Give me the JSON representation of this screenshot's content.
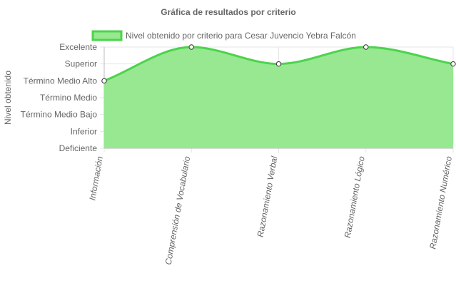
{
  "chart_data": {
    "type": "area",
    "title": "Gráfica de resultados por criterio",
    "xlabel": "",
    "ylabel": "Nivel obtenido",
    "categories": [
      "Información",
      "Comprensión de Vocabulario",
      "Razonamiento Verbal",
      "Razonamiento Lógico",
      "Razonamiento Numérico"
    ],
    "y_levels": [
      "Deficiente",
      "Inferior",
      "Término Medio Bajo",
      "Término Medio",
      "Término Medio Alto",
      "Superior",
      "Excelente"
    ],
    "series": [
      {
        "name": "Nivel obtenido por criterio para Cesar Juvencio Yebra Falcón",
        "values": [
          "Término Medio Alto",
          "Excelente",
          "Superior",
          "Excelente",
          "Superior"
        ],
        "value_index": [
          4,
          6,
          5,
          6,
          5
        ],
        "color": "#4cd34c",
        "fill": "#97e891"
      }
    ],
    "grid": true,
    "legend_position": "top",
    "smooth": true
  }
}
